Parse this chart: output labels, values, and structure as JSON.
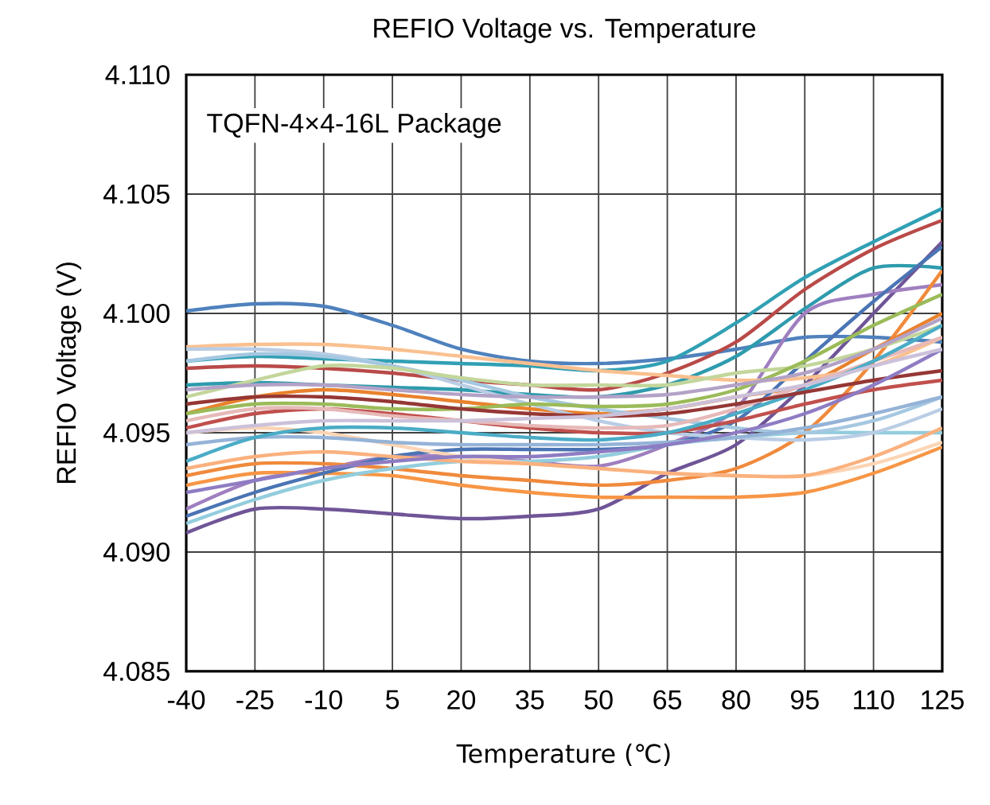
{
  "chart_data": {
    "type": "line",
    "title": "REFIO Voltage vs. Temperature",
    "xlabel": "Temperature (℃)",
    "ylabel": "REFIO Voltage (V)",
    "annotations": [
      "TQFN-4×4-16L Package"
    ],
    "x": [
      -40,
      -25,
      -10,
      5,
      20,
      35,
      50,
      65,
      80,
      95,
      110,
      125
    ],
    "xlim": [
      -40,
      125
    ],
    "xticks": [
      -40,
      -25,
      -10,
      5,
      20,
      35,
      50,
      65,
      80,
      95,
      110,
      125
    ],
    "ylim": [
      4.085,
      4.11
    ],
    "yticks": [
      {
        "value": 4.085,
        "label": "4.085"
      },
      {
        "value": 4.09,
        "label": "4.090"
      },
      {
        "value": 4.095,
        "label": "4.095"
      },
      {
        "value": 4.1,
        "label": "4.100"
      },
      {
        "value": 4.105,
        "label": "4.105"
      },
      {
        "value": 4.11,
        "label": "4.110"
      }
    ],
    "grid": true,
    "marker": "none",
    "line_style": "solid",
    "series": [
      {
        "color": "#4f81bd",
        "values": [
          4.1001,
          4.1004,
          4.1003,
          4.0995,
          4.0985,
          4.098,
          4.0979,
          4.0981,
          4.0985,
          4.099,
          4.099,
          4.0988
        ]
      },
      {
        "color": "#31a0b4",
        "values": [
          4.098,
          4.0982,
          4.0981,
          4.098,
          4.0979,
          4.0978,
          4.0976,
          4.098,
          4.0996,
          4.1015,
          4.103,
          4.1044
        ]
      },
      {
        "color": "#b94a48",
        "values": [
          4.0977,
          4.0978,
          4.0977,
          4.0975,
          4.0972,
          4.097,
          4.0968,
          4.0975,
          4.0988,
          4.101,
          4.1027,
          4.1039
        ]
      },
      {
        "color": "#2e9bad",
        "values": [
          4.097,
          4.0971,
          4.097,
          4.0969,
          4.0968,
          4.0966,
          4.0965,
          4.097,
          4.0982,
          4.1002,
          4.1019,
          4.1019
        ]
      },
      {
        "color": "#6f5597",
        "values": [
          4.0908,
          4.0918,
          4.0918,
          4.0916,
          4.0914,
          4.0915,
          4.0918,
          4.0933,
          4.0945,
          4.097,
          4.1,
          4.103
        ]
      },
      {
        "color": "#9f7fc0",
        "values": [
          4.0918,
          4.093,
          4.0935,
          4.094,
          4.094,
          4.0938,
          4.0936,
          4.0945,
          4.096,
          4.1,
          4.1008,
          4.1012
        ]
      },
      {
        "color": "#f79646",
        "values": [
          4.0928,
          4.0933,
          4.0933,
          4.0932,
          4.0928,
          4.0925,
          4.0923,
          4.0923,
          4.0923,
          4.0925,
          4.0933,
          4.0944
        ]
      },
      {
        "color": "#f08a3c",
        "values": [
          4.0932,
          4.0937,
          4.0937,
          4.0935,
          4.0932,
          4.093,
          4.0928,
          4.093,
          4.0935,
          4.095,
          4.098,
          4.1018
        ]
      },
      {
        "color": "#e9822d",
        "values": [
          4.0958,
          4.0965,
          4.0968,
          4.0966,
          4.0963,
          4.096,
          4.0958,
          4.096,
          4.0965,
          4.097,
          4.0985,
          4.1
        ]
      },
      {
        "color": "#93cddd",
        "values": [
          4.0912,
          4.0922,
          4.093,
          4.0935,
          4.0938,
          4.0938,
          4.094,
          4.0945,
          4.0948,
          4.095,
          4.095,
          4.095
        ]
      },
      {
        "color": "#4a74b4",
        "values": [
          4.0915,
          4.0925,
          4.0933,
          4.094,
          4.0943,
          4.0943,
          4.0943,
          4.0945,
          4.0955,
          4.098,
          4.1005,
          4.1028
        ]
      },
      {
        "color": "#fac090",
        "values": [
          4.0986,
          4.0987,
          4.0987,
          4.0985,
          4.0982,
          4.0979,
          4.0976,
          4.0974,
          4.0972,
          4.0973,
          4.0978,
          4.099
        ]
      },
      {
        "color": "#b9cde5",
        "values": [
          4.0985,
          4.0985,
          4.0983,
          4.0978,
          4.097,
          4.0962,
          4.0955,
          4.095,
          4.0948,
          4.0947,
          4.095,
          4.096
        ]
      },
      {
        "color": "#a5c8e1",
        "values": [
          4.098,
          4.0983,
          4.0982,
          4.0978,
          4.0972,
          4.0965,
          4.096,
          4.0956,
          4.0952,
          4.095,
          4.0955,
          4.0965
        ]
      },
      {
        "color": "#fcd5b5",
        "values": [
          4.095,
          4.0952,
          4.095,
          4.0945,
          4.094,
          4.0937,
          4.0935,
          4.0933,
          4.0932,
          4.0932,
          4.0937,
          4.0946
        ]
      },
      {
        "color": "#c3d69b",
        "values": [
          4.0965,
          4.0972,
          4.0978,
          4.0977,
          4.0973,
          4.097,
          4.097,
          4.097,
          4.0975,
          4.0978,
          4.0985,
          4.0995
        ]
      },
      {
        "color": "#9bbb59",
        "values": [
          4.0958,
          4.0962,
          4.0962,
          4.096,
          4.096,
          4.0962,
          4.0961,
          4.0962,
          4.0968,
          4.098,
          4.0995,
          4.1008
        ]
      },
      {
        "color": "#c0504d",
        "values": [
          4.0952,
          4.0958,
          4.096,
          4.0958,
          4.0955,
          4.0952,
          4.095,
          4.095,
          4.0955,
          4.0962,
          4.0968,
          4.0972
        ]
      },
      {
        "color": "#e6b9b8",
        "values": [
          4.0955,
          4.096,
          4.096,
          4.0957,
          4.0955,
          4.0953,
          4.0952,
          4.0953,
          4.096,
          4.097,
          4.098,
          4.099
        ]
      },
      {
        "color": "#b3a2c7",
        "values": [
          4.0968,
          4.097,
          4.097,
          4.0968,
          4.0966,
          4.0965,
          4.0965,
          4.0966,
          4.097,
          4.0975,
          4.0985,
          4.0998
        ]
      },
      {
        "color": "#95b3d7",
        "values": [
          4.0945,
          4.0948,
          4.0948,
          4.0946,
          4.0945,
          4.0945,
          4.0945,
          4.0946,
          4.0948,
          4.0952,
          4.0958,
          4.0965
        ]
      },
      {
        "color": "#4bacc6",
        "values": [
          4.0938,
          4.0948,
          4.0952,
          4.0952,
          4.095,
          4.0948,
          4.0947,
          4.095,
          4.0958,
          4.0968,
          4.098,
          4.0995
        ]
      },
      {
        "color": "#953735",
        "values": [
          4.0962,
          4.0965,
          4.0965,
          4.0963,
          4.096,
          4.0958,
          4.0957,
          4.0958,
          4.0962,
          4.0967,
          4.0972,
          4.0976
        ]
      },
      {
        "color": "#fab17e",
        "values": [
          4.0935,
          4.094,
          4.0942,
          4.094,
          4.0938,
          4.0937,
          4.0935,
          4.0933,
          4.0932,
          4.0932,
          4.094,
          4.0952
        ]
      },
      {
        "color": "#8e7cc3",
        "values": [
          4.0925,
          4.093,
          4.0935,
          4.0938,
          4.094,
          4.094,
          4.0942,
          4.0945,
          4.095,
          4.0958,
          4.097,
          4.0985
        ]
      },
      {
        "color": "#ccc1da",
        "values": [
          4.095,
          4.0953,
          4.0955,
          4.0955,
          4.0955,
          4.0956,
          4.0957,
          4.096,
          4.0965,
          4.097,
          4.0978,
          4.0985
        ]
      }
    ]
  }
}
